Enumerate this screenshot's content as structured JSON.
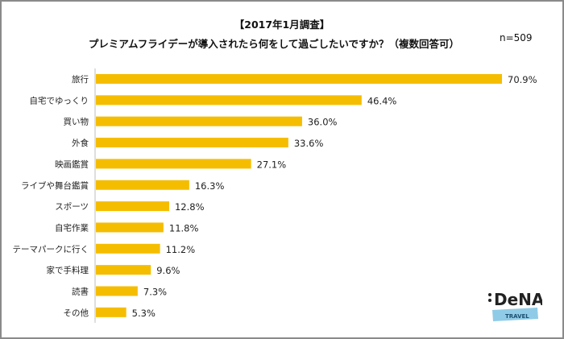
{
  "chart_data": {
    "type": "bar",
    "orientation": "horizontal",
    "title": "【2017年1月調査】",
    "subtitle": "プレミアムフライデーが導入されたら何をして過ごしたいですか？（複数回答可）",
    "annotation": "n=509",
    "categories": [
      "旅行",
      "自宅でゆっくり",
      "買い物",
      "外食",
      "映画鑑賞",
      "ライブや舞台鑑賞",
      "スポーツ",
      "自宅作業",
      "テーマパークに行く",
      "家で手料理",
      "読書",
      "その他"
    ],
    "values": [
      70.9,
      46.4,
      36.0,
      33.6,
      27.1,
      16.3,
      12.8,
      11.8,
      11.2,
      9.6,
      7.3,
      5.3
    ],
    "data_labels": [
      "70.9%",
      "46.4%",
      "36.0%",
      "33.6%",
      "27.1%",
      "16.3%",
      "12.8%",
      "11.8%",
      "11.2%",
      "9.6%",
      "7.3%",
      "5.3%"
    ],
    "xlim": [
      0,
      75
    ],
    "grid": false,
    "bar_color": "#f5bd00",
    "xlabel": "",
    "ylabel": ""
  },
  "logo": {
    "text": "DeNA",
    "sub": "TRAVEL",
    "sub_bg": "#8fcbe6"
  }
}
